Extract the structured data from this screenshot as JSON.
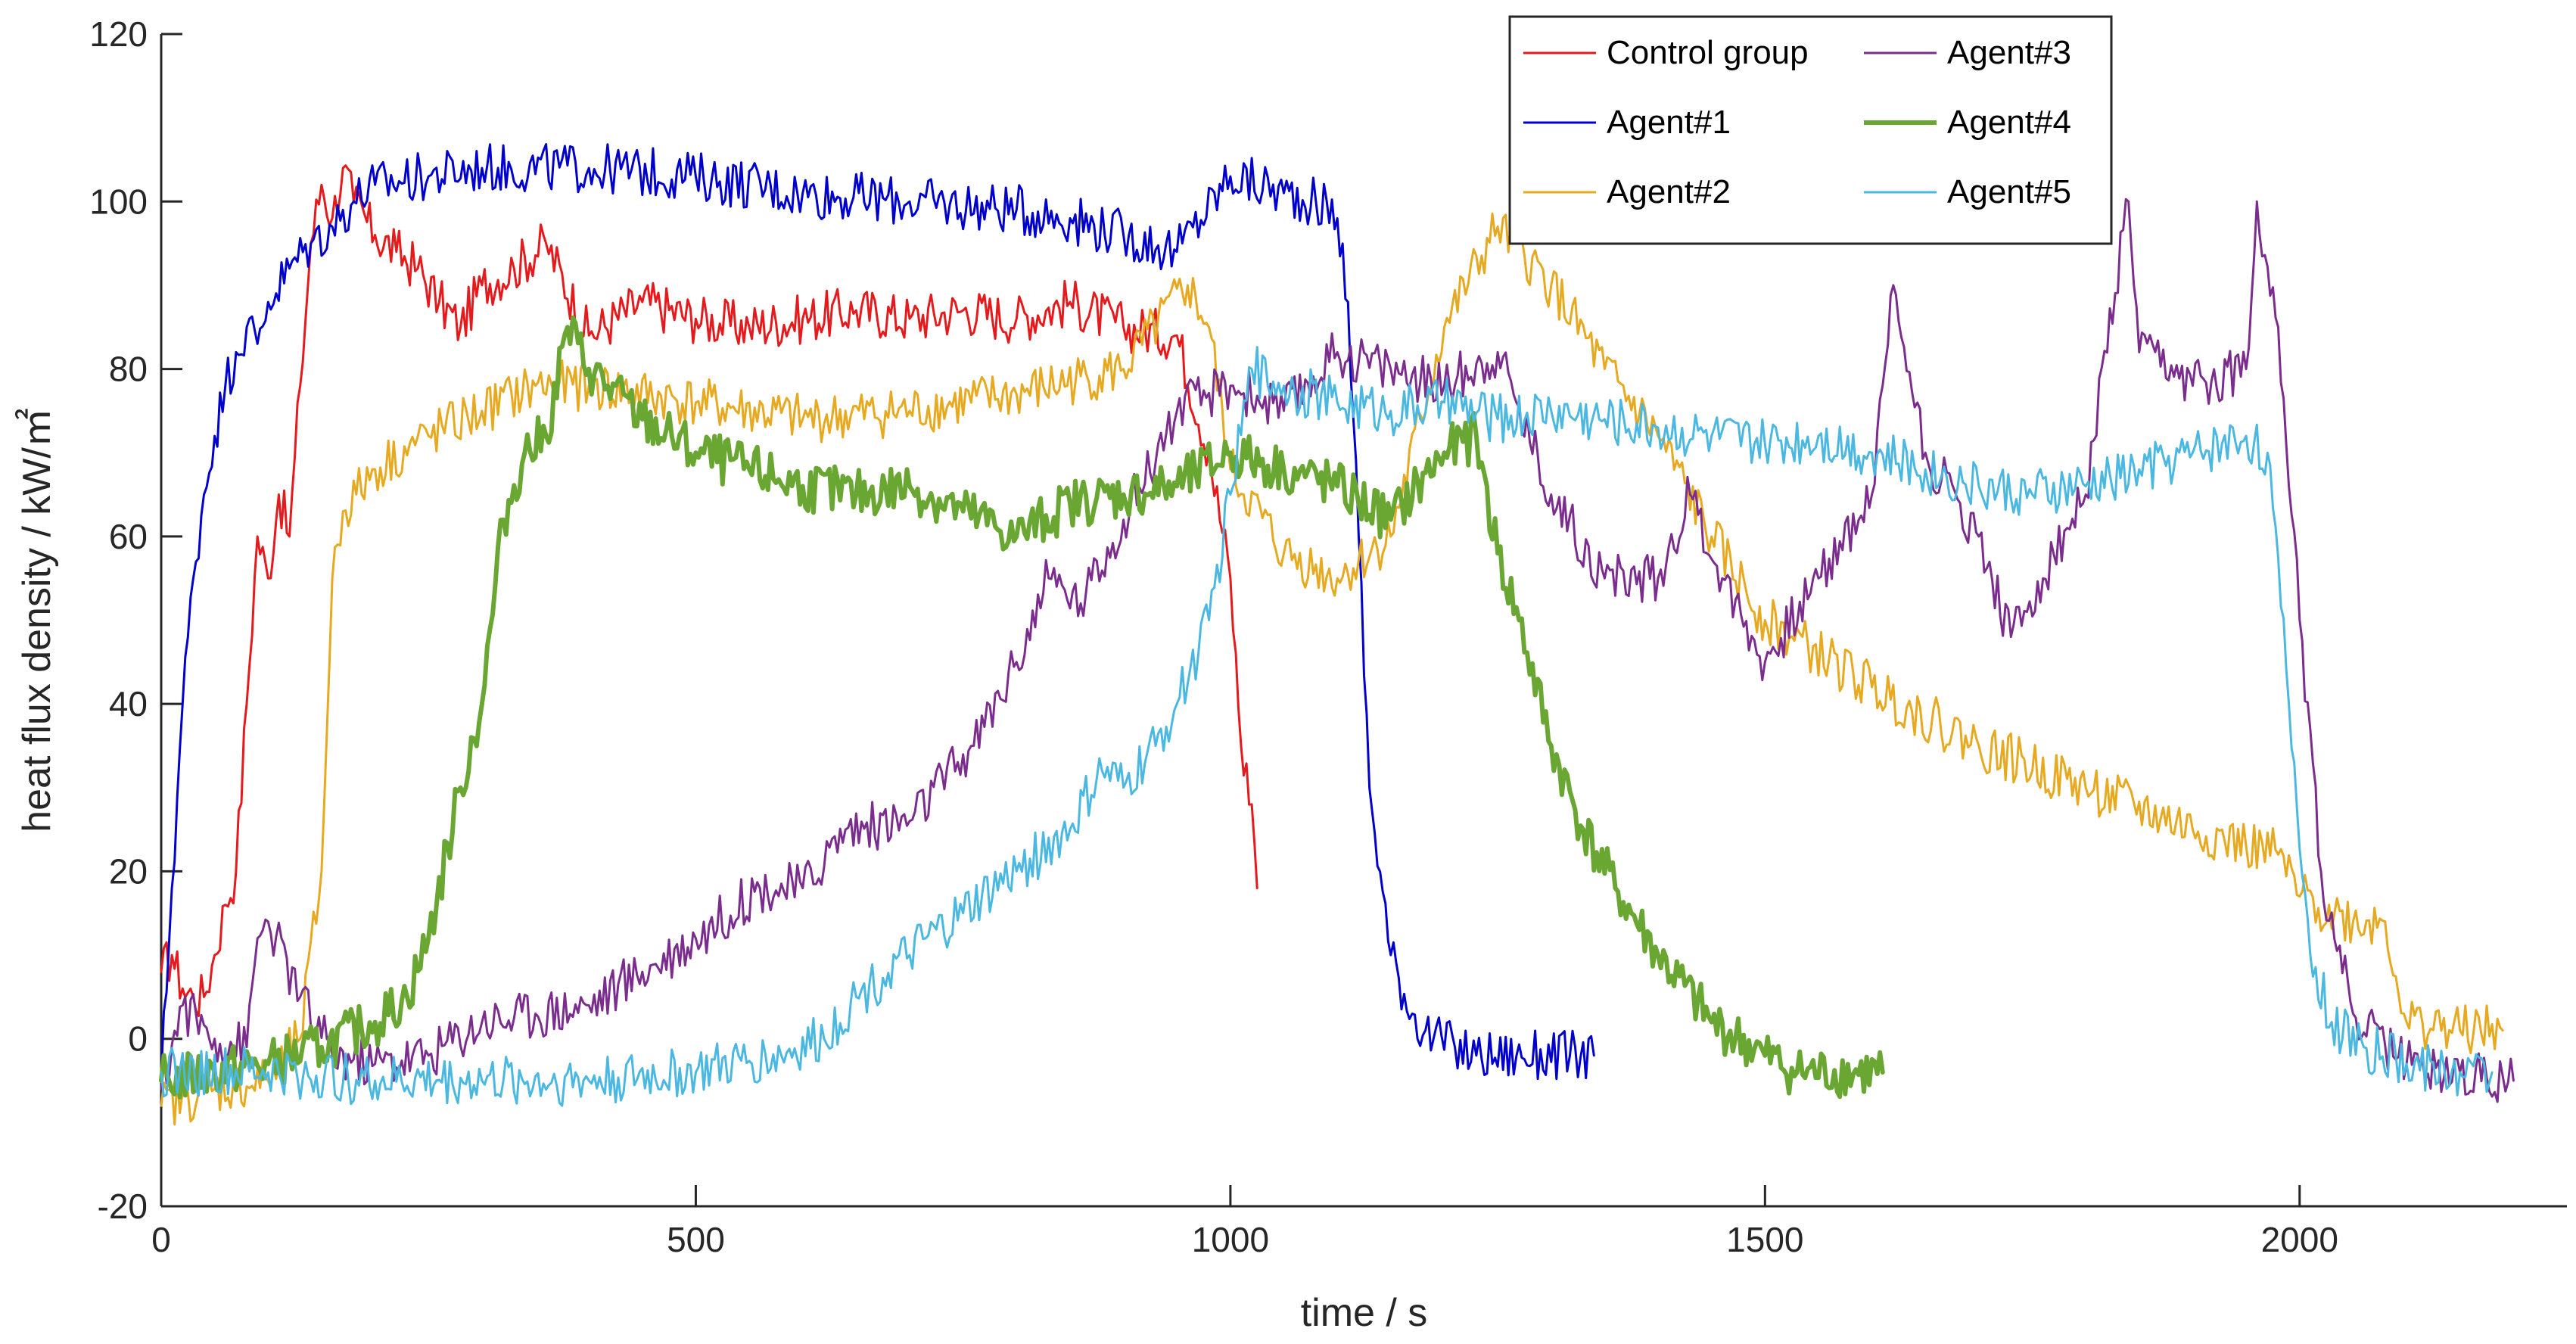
{
  "chart_data": {
    "type": "line",
    "title": "",
    "xlabel": "time / s",
    "ylabel": "heat flux density / kW/㎡",
    "xlim": [
      0,
      2250
    ],
    "ylim": [
      -20,
      120
    ],
    "xticks": [
      0,
      500,
      1000,
      1500,
      2000
    ],
    "yticks": [
      -20,
      0,
      20,
      40,
      60,
      80,
      100,
      120
    ],
    "legend_position": "top-right",
    "series": [
      {
        "name": "Control group",
        "color": "#e41a1c",
        "width": 3,
        "x": [
          0,
          10,
          20,
          30,
          40,
          50,
          60,
          70,
          80,
          90,
          100,
          110,
          120,
          130,
          140,
          150,
          160,
          170,
          180,
          200,
          220,
          240,
          260,
          280,
          300,
          330,
          360,
          400,
          450,
          500,
          550,
          600,
          650,
          700,
          750,
          800,
          850,
          900,
          950,
          980,
          1000,
          1010,
          1020,
          1025
        ],
        "values": [
          8,
          10,
          6,
          5,
          5,
          10,
          16,
          20,
          40,
          60,
          55,
          65,
          60,
          78,
          95,
          102,
          98,
          104,
          100,
          96,
          94,
          92,
          88,
          85,
          90,
          92,
          95,
          84,
          88,
          86,
          85,
          86,
          87,
          86,
          87,
          86,
          88,
          85,
          84,
          70,
          55,
          35,
          28,
          18
        ]
      },
      {
        "name": "Agent#1",
        "color": "#0000cd",
        "width": 3,
        "x": [
          0,
          10,
          20,
          30,
          40,
          50,
          60,
          70,
          80,
          90,
          100,
          120,
          140,
          160,
          180,
          200,
          250,
          300,
          400,
          500,
          600,
          700,
          800,
          850,
          900,
          950,
          1000,
          1050,
          1080,
          1100,
          1110,
          1120,
          1130,
          1150,
          1170,
          1190,
          1210,
          1230,
          1340
        ],
        "values": [
          -5,
          18,
          40,
          55,
          65,
          72,
          78,
          82,
          85,
          83,
          88,
          92,
          95,
          97,
          100,
          102,
          103,
          104,
          104,
          103,
          101,
          100,
          99,
          98,
          96,
          94,
          103,
          101,
          100,
          98,
          88,
          60,
          30,
          10,
          3,
          0,
          -1,
          -2,
          -2
        ]
      },
      {
        "name": "Agent#2",
        "color": "#e6a91f",
        "width": 3,
        "x": [
          0,
          50,
          100,
          130,
          150,
          160,
          170,
          200,
          250,
          300,
          350,
          400,
          500,
          600,
          700,
          800,
          900,
          960,
          980,
          1000,
          1050,
          1100,
          1150,
          1200,
          1250,
          1300,
          1350,
          1400,
          1450,
          1500,
          1600,
          1700,
          1800,
          1900,
          1950,
          1980,
          2000,
          2050,
          2080,
          2100,
          2150,
          2190
        ],
        "values": [
          -8,
          -6,
          -5,
          0,
          20,
          55,
          63,
          68,
          72,
          75,
          78,
          78,
          76,
          74,
          75,
          77,
          80,
          90,
          85,
          68,
          58,
          55,
          60,
          85,
          97,
          90,
          80,
          72,
          60,
          50,
          42,
          35,
          30,
          25,
          23,
          22,
          17,
          14,
          14,
          2,
          1,
          1
        ]
      },
      {
        "name": "Agent#3",
        "color": "#7b2d8e",
        "width": 3,
        "x": [
          0,
          20,
          50,
          80,
          90,
          100,
          130,
          160,
          200,
          250,
          300,
          350,
          400,
          450,
          500,
          560,
          600,
          640,
          700,
          760,
          800,
          830,
          860,
          900,
          950,
          1000,
          1050,
          1100,
          1150,
          1200,
          1250,
          1300,
          1350,
          1400,
          1430,
          1460,
          1500,
          1550,
          1600,
          1620,
          1650,
          1700,
          1730,
          1760,
          1800,
          1840,
          1850,
          1900,
          1950,
          1960,
          1980,
          2000,
          2020,
          2050,
          2100,
          2150,
          2200
        ],
        "values": [
          -6,
          4,
          0,
          -1,
          12,
          14,
          5,
          -2,
          -3,
          -2,
          2,
          3,
          4,
          8,
          12,
          18,
          18,
          25,
          26,
          35,
          45,
          55,
          52,
          62,
          75,
          78,
          75,
          82,
          80,
          78,
          82,
          65,
          55,
          55,
          65,
          55,
          45,
          55,
          65,
          90,
          70,
          60,
          48,
          55,
          65,
          100,
          82,
          78,
          80,
          100,
          85,
          50,
          20,
          3,
          -3,
          -4,
          -5
        ]
      },
      {
        "name": "Agent#4",
        "color": "#6aa632",
        "width": 6,
        "x": [
          0,
          50,
          100,
          150,
          200,
          230,
          250,
          280,
          300,
          320,
          340,
          360,
          380,
          400,
          450,
          500,
          550,
          600,
          650,
          700,
          750,
          800,
          850,
          900,
          950,
          1000,
          1050,
          1100,
          1150,
          1200,
          1230,
          1250,
          1270,
          1300,
          1330,
          1360,
          1400,
          1450,
          1500,
          1530,
          1610
        ],
        "values": [
          -5,
          -4,
          -3,
          -1,
          2,
          5,
          12,
          30,
          40,
          62,
          70,
          72,
          85,
          80,
          74,
          70,
          68,
          66,
          65,
          66,
          63,
          60,
          64,
          65,
          66,
          70,
          68,
          66,
          62,
          70,
          72,
          58,
          50,
          35,
          25,
          18,
          10,
          2,
          -2,
          -4,
          -4
        ]
      },
      {
        "name": "Agent#5",
        "color": "#4ab8e0",
        "width": 3,
        "x": [
          0,
          100,
          200,
          300,
          400,
          500,
          580,
          620,
          650,
          700,
          750,
          800,
          850,
          880,
          900,
          930,
          950,
          980,
          1000,
          1020,
          1050,
          1100,
          1150,
          1200,
          1250,
          1300,
          1350,
          1400,
          1450,
          1500,
          1550,
          1600,
          1650,
          1700,
          1750,
          1800,
          1850,
          1900,
          1950,
          1970,
          1990,
          2010,
          2030,
          2060,
          2100,
          2150,
          2180
        ],
        "values": [
          -4,
          -4,
          -5,
          -5,
          -5,
          -4,
          -2,
          0,
          5,
          10,
          15,
          20,
          25,
          32,
          30,
          35,
          40,
          50,
          65,
          80,
          78,
          76,
          75,
          76,
          74,
          75,
          74,
          73,
          72,
          71,
          72,
          70,
          68,
          66,
          65,
          66,
          68,
          70,
          72,
          70,
          40,
          10,
          2,
          -1,
          -3,
          -4,
          -4
        ]
      }
    ]
  }
}
